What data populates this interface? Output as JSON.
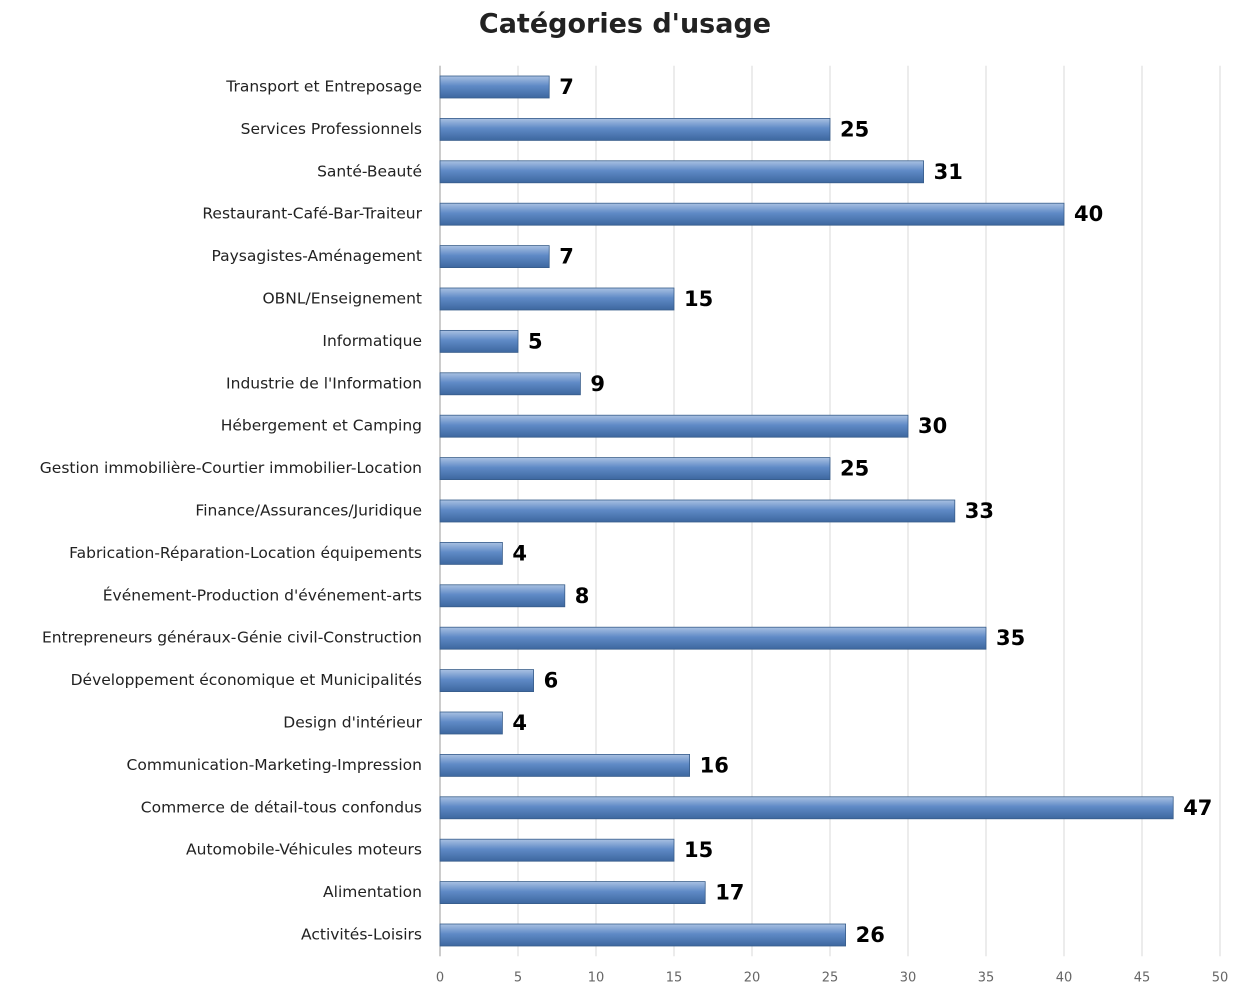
{
  "chart_data": {
    "type": "bar",
    "orientation": "horizontal",
    "title": "Catégories d'usage",
    "categories": [
      "Transport et Entreposage",
      "Services Professionnels",
      "Santé-Beauté",
      "Restaurant-Café-Bar-Traiteur",
      "Paysagistes-Aménagement",
      "OBNL/Enseignement",
      "Informatique",
      "Industrie de l'Information",
      "Hébergement et Camping",
      "Gestion immobilière-Courtier immobilier-Location",
      "Finance/Assurances/Juridique",
      "Fabrication-Réparation-Location équipements",
      "Événement-Production d'événement-arts",
      "Entrepreneurs généraux-Génie civil-Construction",
      "Développement économique et Municipalités",
      "Design d'intérieur",
      "Communication-Marketing-Impression",
      "Commerce de détail-tous confondus",
      "Automobile-Véhicules moteurs",
      "Alimentation",
      "Activités-Loisirs"
    ],
    "values": [
      7,
      25,
      31,
      40,
      7,
      15,
      5,
      9,
      30,
      25,
      33,
      4,
      8,
      35,
      6,
      4,
      16,
      47,
      15,
      17,
      26
    ],
    "color": "#4f81bd",
    "xlim": [
      0,
      50
    ],
    "xticks": [
      0,
      5,
      10,
      15,
      20,
      25,
      30,
      35,
      40,
      45,
      50
    ],
    "grid": true
  }
}
